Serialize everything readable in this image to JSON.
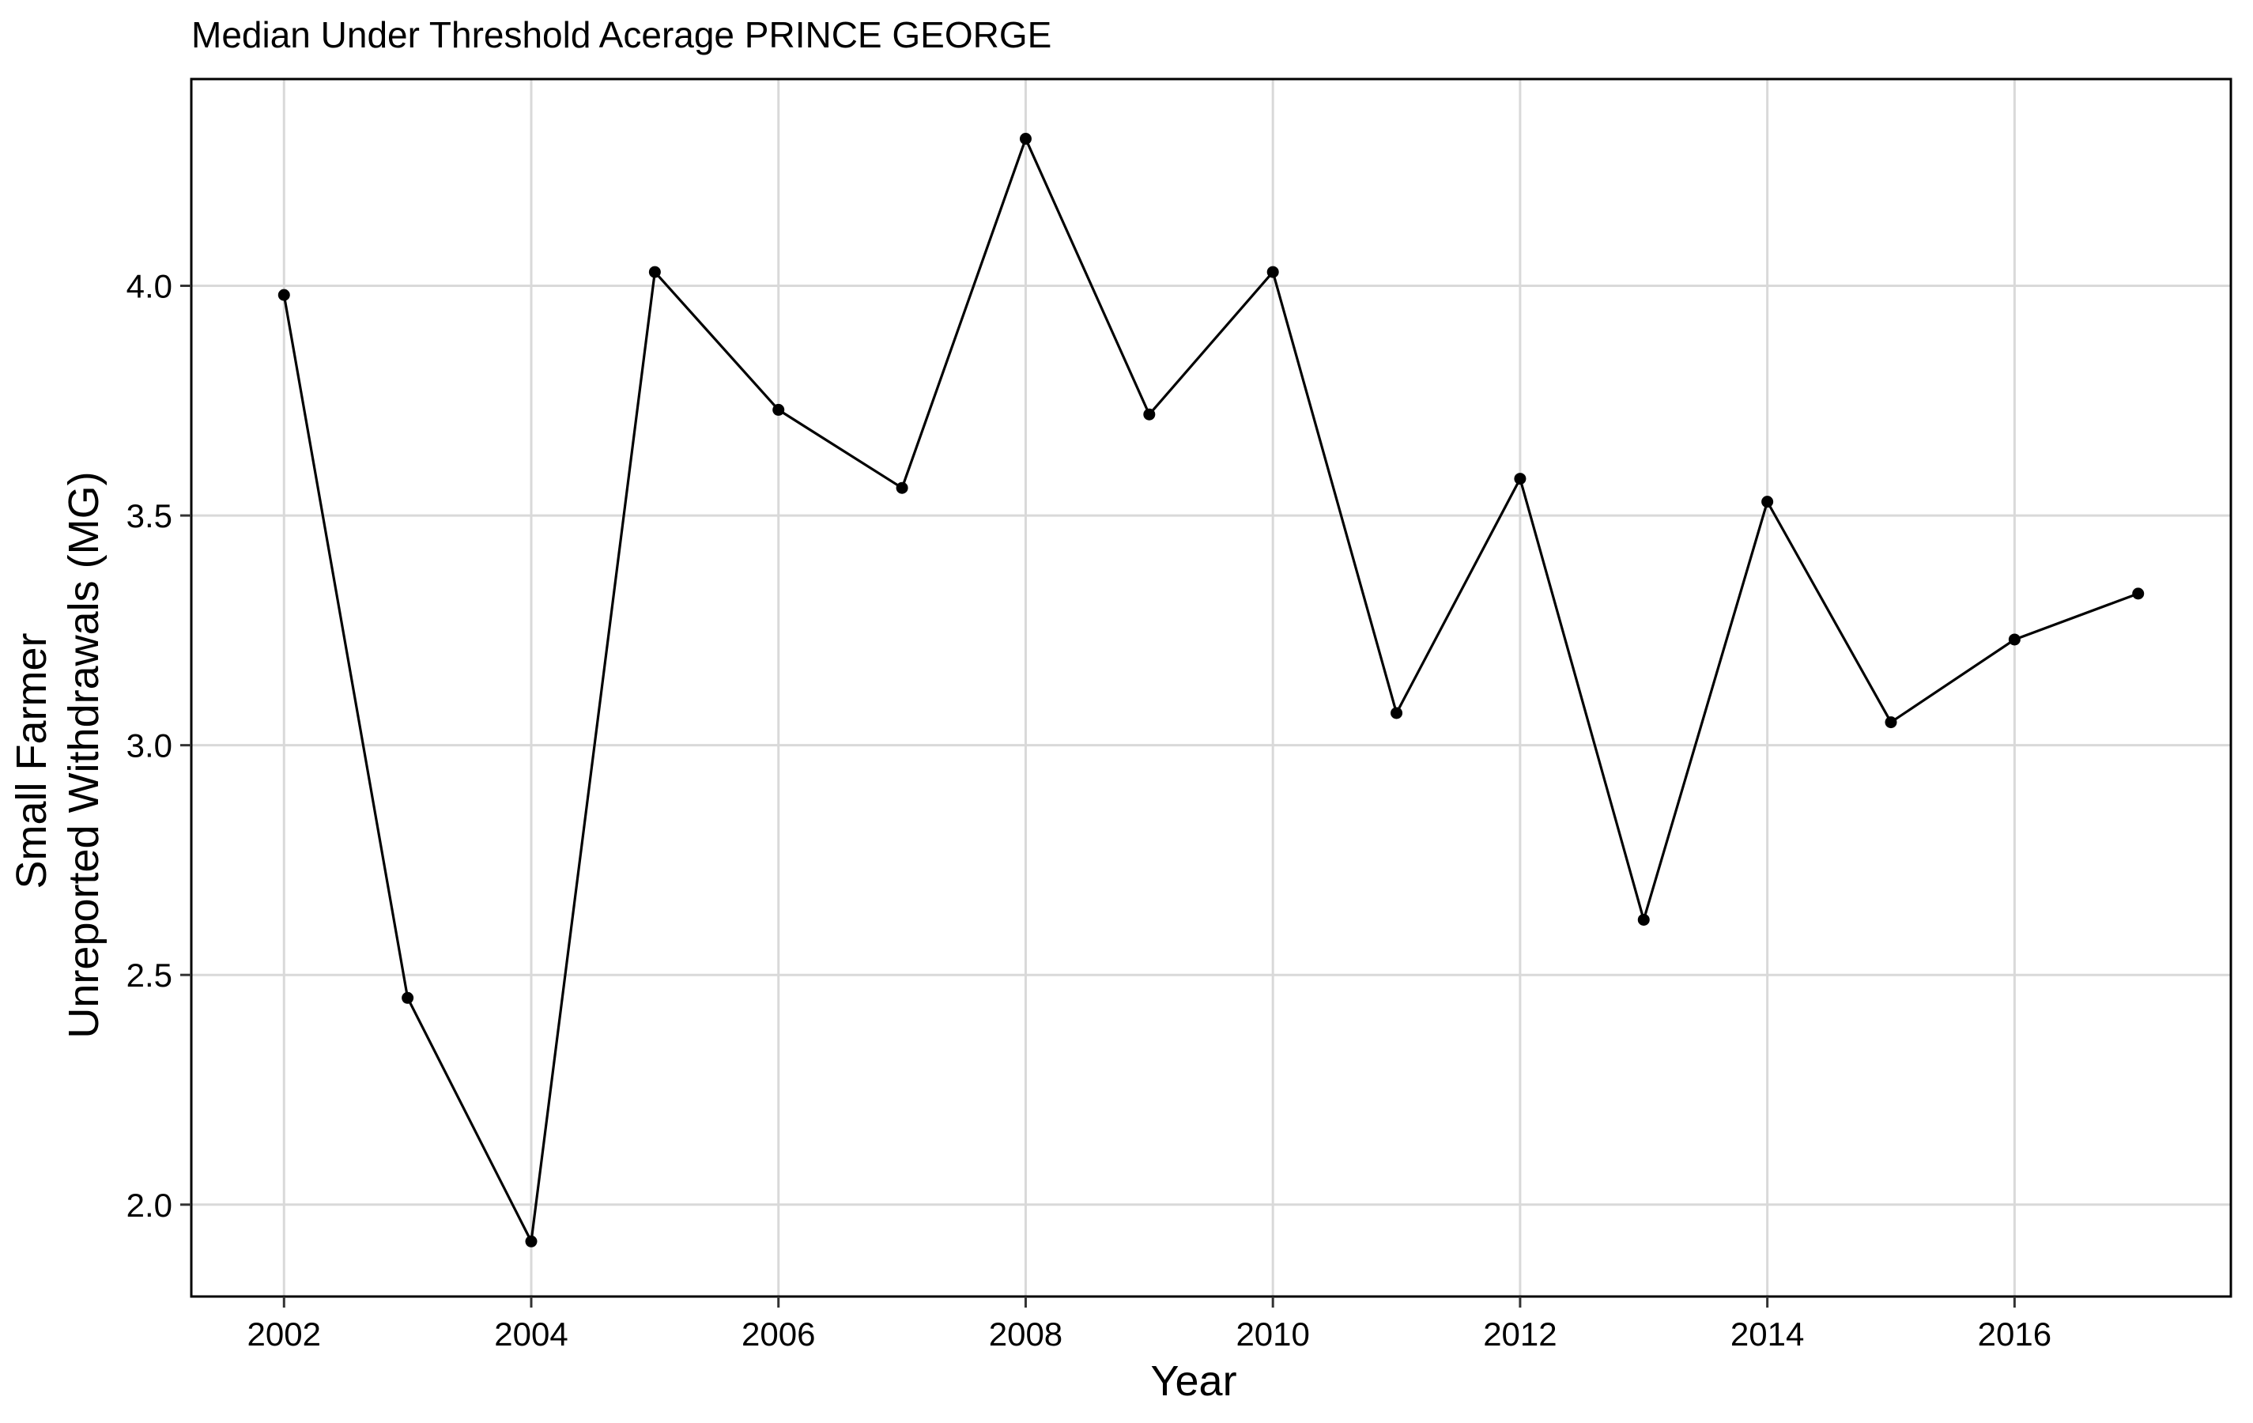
{
  "chart_data": {
    "type": "line",
    "title": "Median Under Threshold Acerage PRINCE GEORGE",
    "xlabel": "Year",
    "ylabel_lines": [
      "Small Farmer",
      "Unreported Withdrawals (MG)"
    ],
    "x": [
      2002,
      2003,
      2004,
      2005,
      2006,
      2007,
      2008,
      2009,
      2010,
      2011,
      2012,
      2013,
      2014,
      2015,
      2016,
      2017
    ],
    "values": [
      3.98,
      2.45,
      1.92,
      4.03,
      3.73,
      3.56,
      4.32,
      3.72,
      4.03,
      3.07,
      3.58,
      2.62,
      3.53,
      3.05,
      3.23,
      3.33
    ],
    "xlim": [
      2001.25,
      2017.75
    ],
    "ylim": [
      1.8,
      4.45
    ],
    "x_ticks": [
      2002,
      2004,
      2006,
      2008,
      2010,
      2012,
      2014,
      2016
    ],
    "x_tick_labels": [
      "2002",
      "2004",
      "2006",
      "2008",
      "2010",
      "2012",
      "2014",
      "2016"
    ],
    "y_ticks": [
      2.0,
      2.5,
      3.0,
      3.5,
      4.0
    ],
    "y_tick_labels": [
      "2.0",
      "2.5",
      "3.0",
      "3.5",
      "4.0"
    ],
    "grid": true,
    "legend": "none",
    "colors": {
      "line": "#000000",
      "point": "#000000",
      "grid": "#d9d9d9",
      "panel_border": "#000000",
      "background": "#ffffff"
    }
  }
}
